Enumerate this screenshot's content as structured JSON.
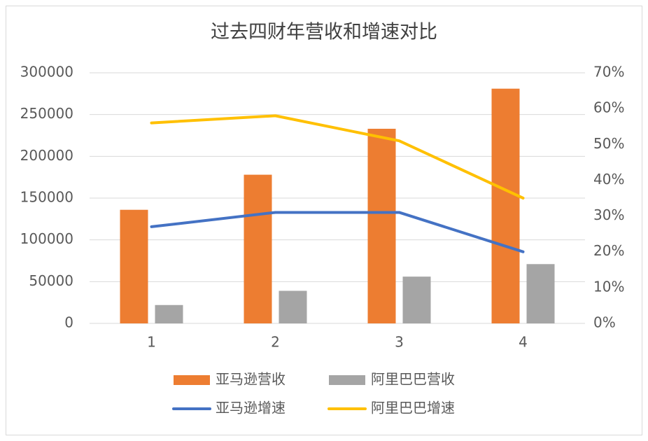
{
  "chart_data": {
    "type": "bar",
    "title": "过去四财年营收和增速对比",
    "categories": [
      "1",
      "2",
      "3",
      "4"
    ],
    "series": [
      {
        "name": "亚马逊营收",
        "color": "#ed7d31",
        "values": [
          136000,
          178000,
          233000,
          281000
        ]
      },
      {
        "name": "阿里巴巴营收",
        "color": "#a5a5a5",
        "values": [
          22000,
          39000,
          56000,
          71000
        ]
      },
      {
        "name": "亚马逊增速",
        "color": "#4472c4",
        "axis": "y2",
        "values": [
          27,
          31,
          31,
          20
        ]
      },
      {
        "name": "阿里巴巴增速",
        "color": "#ffc000",
        "axis": "y2",
        "values": [
          56,
          58,
          51,
          35
        ]
      }
    ],
    "ylim": [
      0,
      300000
    ],
    "yticks": [
      0,
      50000,
      100000,
      150000,
      200000,
      250000,
      300000
    ],
    "y2lim": [
      0,
      70
    ],
    "y2ticks": [
      {
        "value": 0,
        "label": "0%"
      },
      {
        "value": 10,
        "label": "10%"
      },
      {
        "value": 20,
        "label": "20%"
      },
      {
        "value": 30,
        "label": "30%"
      },
      {
        "value": 40,
        "label": "40%"
      },
      {
        "value": 50,
        "label": "50%"
      },
      {
        "value": 60,
        "label": "60%"
      },
      {
        "value": 70,
        "label": "70%"
      }
    ],
    "grid": true
  }
}
